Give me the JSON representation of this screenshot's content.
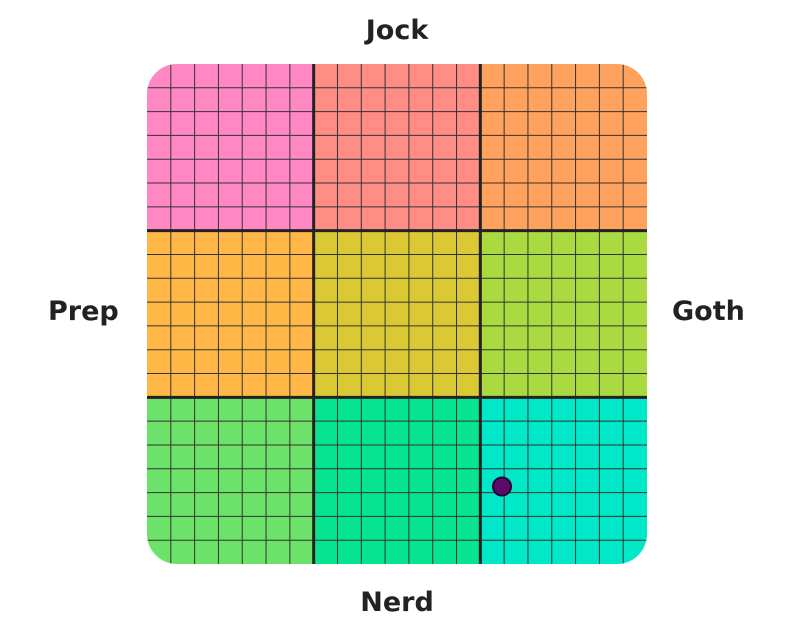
{
  "labels": {
    "top": "Jock",
    "bottom": "Nerd",
    "left": "Prep",
    "right": "Goth"
  },
  "grid": {
    "rows": 3,
    "cols": 3,
    "subdivisions": 7,
    "cells": [
      [
        "#ff88c4",
        "#ff8d85",
        "#ffa25e"
      ],
      [
        "#ffb845",
        "#dac935",
        "#a9da3f"
      ],
      [
        "#6de26a",
        "#06e492",
        "#00e8c8"
      ]
    ],
    "fine_line_color": "#333333",
    "major_line_color": "#222222"
  },
  "marker": {
    "x": 0.71,
    "y": 0.845,
    "fill": "#5b0a6a",
    "stroke": "#2a0330"
  }
}
